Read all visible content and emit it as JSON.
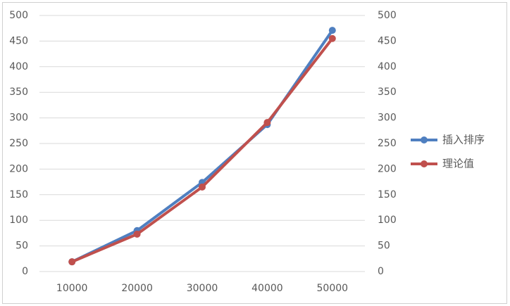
{
  "chart_data": {
    "type": "line",
    "categories": [
      "10000",
      "20000",
      "30000",
      "40000",
      "50000"
    ],
    "series": [
      {
        "name": "插入排序",
        "color": "#4f7fc0",
        "values": [
          19,
          80,
          174,
          287,
          471
        ]
      },
      {
        "name": "理论值",
        "color": "#c0504d",
        "values": [
          19,
          73,
          165,
          291,
          455
        ],
        "axis": "y2"
      }
    ],
    "ylim": [
      0,
      500
    ],
    "yticks": [
      0,
      50,
      100,
      150,
      200,
      250,
      300,
      350,
      400,
      450,
      500
    ],
    "y2lim": [
      0,
      500
    ],
    "y2ticks": [
      0,
      50,
      100,
      150,
      200,
      250,
      300,
      350,
      400,
      450,
      500
    ],
    "grid": true,
    "legend": "right"
  }
}
